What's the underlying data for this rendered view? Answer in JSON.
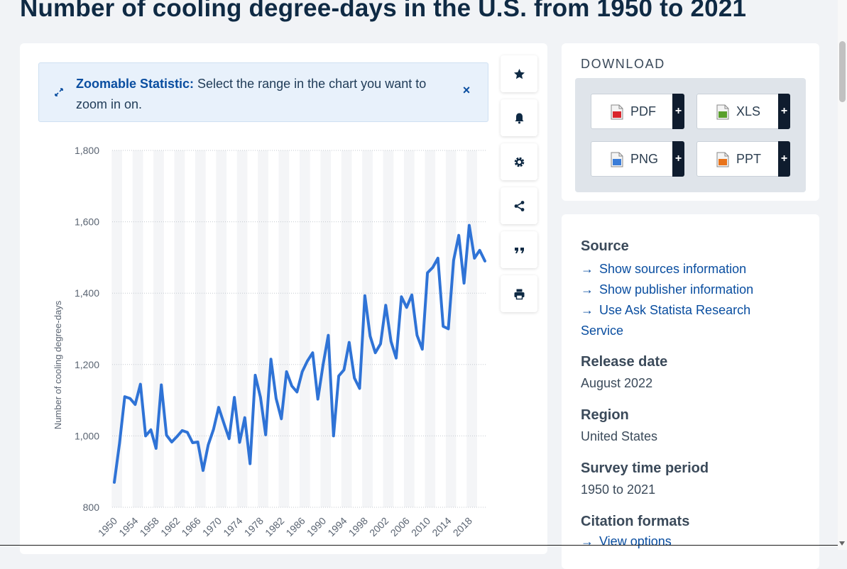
{
  "page": {
    "title": "Number of cooling degree-days in the U.S. from 1950 to 2021"
  },
  "zoom_banner": {
    "bold": "Zoomable Statistic:",
    "text": " Select the range in the chart you want to zoom in on.",
    "close": "×"
  },
  "tools": [
    {
      "name": "favorite-button",
      "icon": "star-icon"
    },
    {
      "name": "notification-button",
      "icon": "bell-icon"
    },
    {
      "name": "settings-button",
      "icon": "gear-icon"
    },
    {
      "name": "share-button",
      "icon": "share-icon"
    },
    {
      "name": "cite-button",
      "icon": "quote-icon"
    },
    {
      "name": "print-button",
      "icon": "printer-icon"
    }
  ],
  "download": {
    "title": "DOWNLOAD",
    "buttons": [
      {
        "label": "PDF",
        "icon": "pdf-file-icon",
        "color": "#d9262c"
      },
      {
        "label": "XLS",
        "icon": "xls-file-icon",
        "color": "#5aa02c"
      },
      {
        "label": "PNG",
        "icon": "png-file-icon",
        "color": "#3b7dd8"
      },
      {
        "label": "PPT",
        "icon": "ppt-file-icon",
        "color": "#e8731b"
      }
    ],
    "plus": "+"
  },
  "info": {
    "source_label": "Source",
    "links": [
      "Show sources information",
      "Show publisher information",
      "Use Ask Statista Research Service"
    ],
    "release_label": "Release date",
    "release_value": "August 2022",
    "region_label": "Region",
    "region_value": "United States",
    "period_label": "Survey time period",
    "period_value": "1950 to 2021",
    "citation_label": "Citation formats",
    "citation_link": "View options"
  },
  "chart_data": {
    "type": "line",
    "title": "",
    "xlabel": "",
    "ylabel": "Number of cooling degree-days",
    "ylim": [
      800,
      1800
    ],
    "yticks": [
      800,
      1000,
      1200,
      1400,
      1600,
      1800
    ],
    "ytick_labels": [
      "800",
      "1,000",
      "1,200",
      "1,400",
      "1,600",
      "1,800"
    ],
    "xtick_labels": [
      "1950",
      "1954",
      "1958",
      "1962",
      "1966",
      "1970",
      "1974",
      "1978",
      "1982",
      "1986",
      "1990",
      "1994",
      "1998",
      "2002",
      "2006",
      "2010",
      "2014",
      "2018"
    ],
    "grid": true,
    "series_color": "#2f73d6",
    "x": [
      1950,
      1951,
      1952,
      1953,
      1954,
      1955,
      1956,
      1957,
      1958,
      1959,
      1960,
      1961,
      1962,
      1963,
      1964,
      1965,
      1966,
      1967,
      1968,
      1969,
      1970,
      1971,
      1972,
      1973,
      1974,
      1975,
      1976,
      1977,
      1978,
      1979,
      1980,
      1981,
      1982,
      1983,
      1984,
      1985,
      1986,
      1987,
      1988,
      1989,
      1990,
      1991,
      1992,
      1993,
      1994,
      1995,
      1996,
      1997,
      1998,
      1999,
      2000,
      2001,
      2002,
      2003,
      2004,
      2005,
      2006,
      2007,
      2008,
      2009,
      2010,
      2011,
      2012,
      2013,
      2014,
      2015,
      2016,
      2017,
      2018,
      2019,
      2020,
      2021
    ],
    "values": [
      870,
      980,
      1110,
      1105,
      1088,
      1145,
      1000,
      1017,
      965,
      1143,
      1002,
      983,
      998,
      1015,
      1010,
      981,
      983,
      903,
      975,
      1018,
      1080,
      1035,
      992,
      1108,
      982,
      1051,
      922,
      1170,
      1108,
      1003,
      1215,
      1105,
      1048,
      1180,
      1140,
      1123,
      1180,
      1210,
      1233,
      1103,
      1200,
      1282,
      1000,
      1168,
      1185,
      1262,
      1162,
      1133,
      1393,
      1280,
      1233,
      1258,
      1366,
      1265,
      1218,
      1390,
      1360,
      1395,
      1282,
      1243,
      1457,
      1472,
      1498,
      1307,
      1300,
      1492,
      1562,
      1428,
      1590,
      1498,
      1520,
      1490
    ]
  }
}
